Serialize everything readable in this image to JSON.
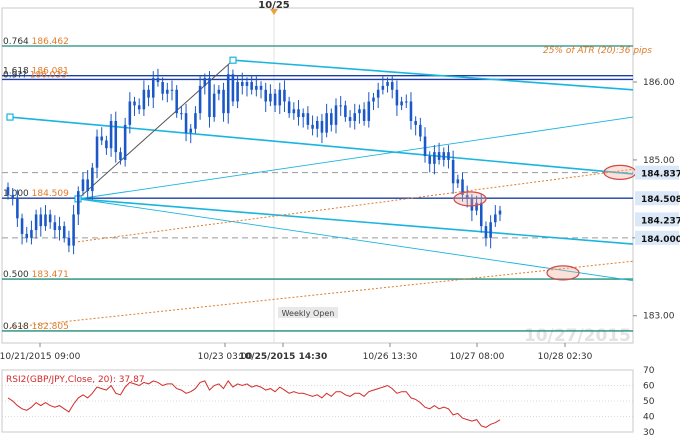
{
  "instrument": "GBP/JPY",
  "date_marker": "10/25",
  "watermark_date": "10/27/2015",
  "atr_note": "25% of ATR (20):36 pips",
  "weekly_open_label": "Weekly Open",
  "colors": {
    "candle": "#1a57c8",
    "fib_line": "#1f8e7c",
    "level_line": "#1b3fa6",
    "channel": "#19b4e0",
    "dotted_trend": "#e07c2a",
    "dashed_level": "#9a9a9a",
    "ellipse": "#d04a4a",
    "rsi_line": "#d42a2a",
    "price_tag": "#dbe8f7"
  },
  "chart_data": [
    {
      "type": "candlestick",
      "title": "",
      "xlabel": "",
      "ylabel": "",
      "ylim": [
        182.65,
        186.95
      ],
      "x_tick_labels": [
        "10/21/2015 09:00",
        "10/23 03:00",
        "10/25/2015 14:30",
        "10/26 13:30",
        "10/27 08:00",
        "10/28 02:30"
      ],
      "y_tick_labels": [
        "183.00",
        "184.00",
        "185.00",
        "186.00"
      ],
      "price_tags": [
        "184.837",
        "184.508",
        "184.237",
        "184.000"
      ],
      "fib_levels": [
        {
          "ratio": "0.764",
          "price": "186.462"
        },
        {
          "ratio": "1.618",
          "price": "186.081"
        },
        {
          "ratio": "0.9??",
          "price": "186.033"
        },
        {
          "ratio": "1.000",
          "price": "184.509"
        },
        {
          "ratio": "0.500",
          "price": "183.471"
        },
        {
          "ratio": "0.618",
          "price": "182.805"
        }
      ],
      "dashed_levels": [
        184.837,
        184.0
      ],
      "close": [
        184.55,
        184.5,
        184.25,
        184.05,
        184.0,
        184.1,
        184.3,
        184.15,
        184.3,
        184.2,
        184.1,
        184.15,
        184.0,
        183.9,
        184.3,
        184.6,
        184.75,
        184.6,
        184.9,
        185.3,
        185.25,
        185.15,
        185.5,
        185.1,
        185.0,
        185.45,
        185.75,
        185.7,
        185.65,
        185.9,
        185.8,
        186.05,
        186.0,
        185.85,
        185.9,
        185.9,
        185.6,
        185.6,
        185.35,
        185.4,
        185.6,
        185.95,
        186.05,
        185.55,
        185.85,
        185.9,
        185.6,
        186.1,
        185.75,
        186.0,
        185.95,
        186.0,
        185.9,
        185.95,
        185.9,
        185.75,
        185.85,
        185.7,
        185.9,
        185.75,
        185.6,
        185.65,
        185.55,
        185.6,
        185.45,
        185.4,
        185.5,
        185.35,
        185.6,
        185.45,
        185.7,
        185.7,
        185.55,
        185.5,
        185.6,
        185.65,
        185.5,
        185.75,
        185.8,
        185.9,
        185.95,
        186.0,
        185.9,
        185.7,
        185.75,
        185.75,
        185.5,
        185.45,
        185.3,
        185.05,
        184.95,
        185.1,
        185.0,
        185.1,
        185.0,
        184.7,
        184.75,
        184.55,
        184.5,
        184.35,
        184.45,
        184.15,
        184.0,
        184.2,
        184.3,
        184.35
      ],
      "rsi": {
        "label": "RSI2(GBP/JPY,Close, 20): 37.87",
        "ylim": [
          30,
          70
        ],
        "y_tick_labels": [
          "70",
          "60",
          "50",
          "40",
          "30"
        ],
        "values": [
          52,
          50,
          47,
          45,
          44,
          46,
          49,
          47,
          49,
          47,
          46,
          47,
          45,
          43,
          48,
          52,
          54,
          52,
          55,
          59,
          58,
          57,
          60,
          55,
          54,
          59,
          62,
          61,
          60,
          62,
          61,
          63,
          62,
          60,
          61,
          61,
          58,
          57,
          55,
          56,
          58,
          62,
          63,
          57,
          60,
          61,
          58,
          63,
          59,
          61,
          60,
          61,
          59,
          60,
          59,
          57,
          58,
          56,
          59,
          57,
          55,
          56,
          55,
          55,
          54,
          53,
          54,
          52,
          55,
          53,
          56,
          56,
          54,
          53,
          55,
          55,
          53,
          56,
          57,
          58,
          59,
          60,
          58,
          55,
          56,
          56,
          52,
          51,
          49,
          46,
          45,
          47,
          45,
          46,
          45,
          41,
          42,
          39,
          38,
          37,
          38,
          34,
          33,
          35,
          36,
          37.87
        ]
      }
    }
  ]
}
